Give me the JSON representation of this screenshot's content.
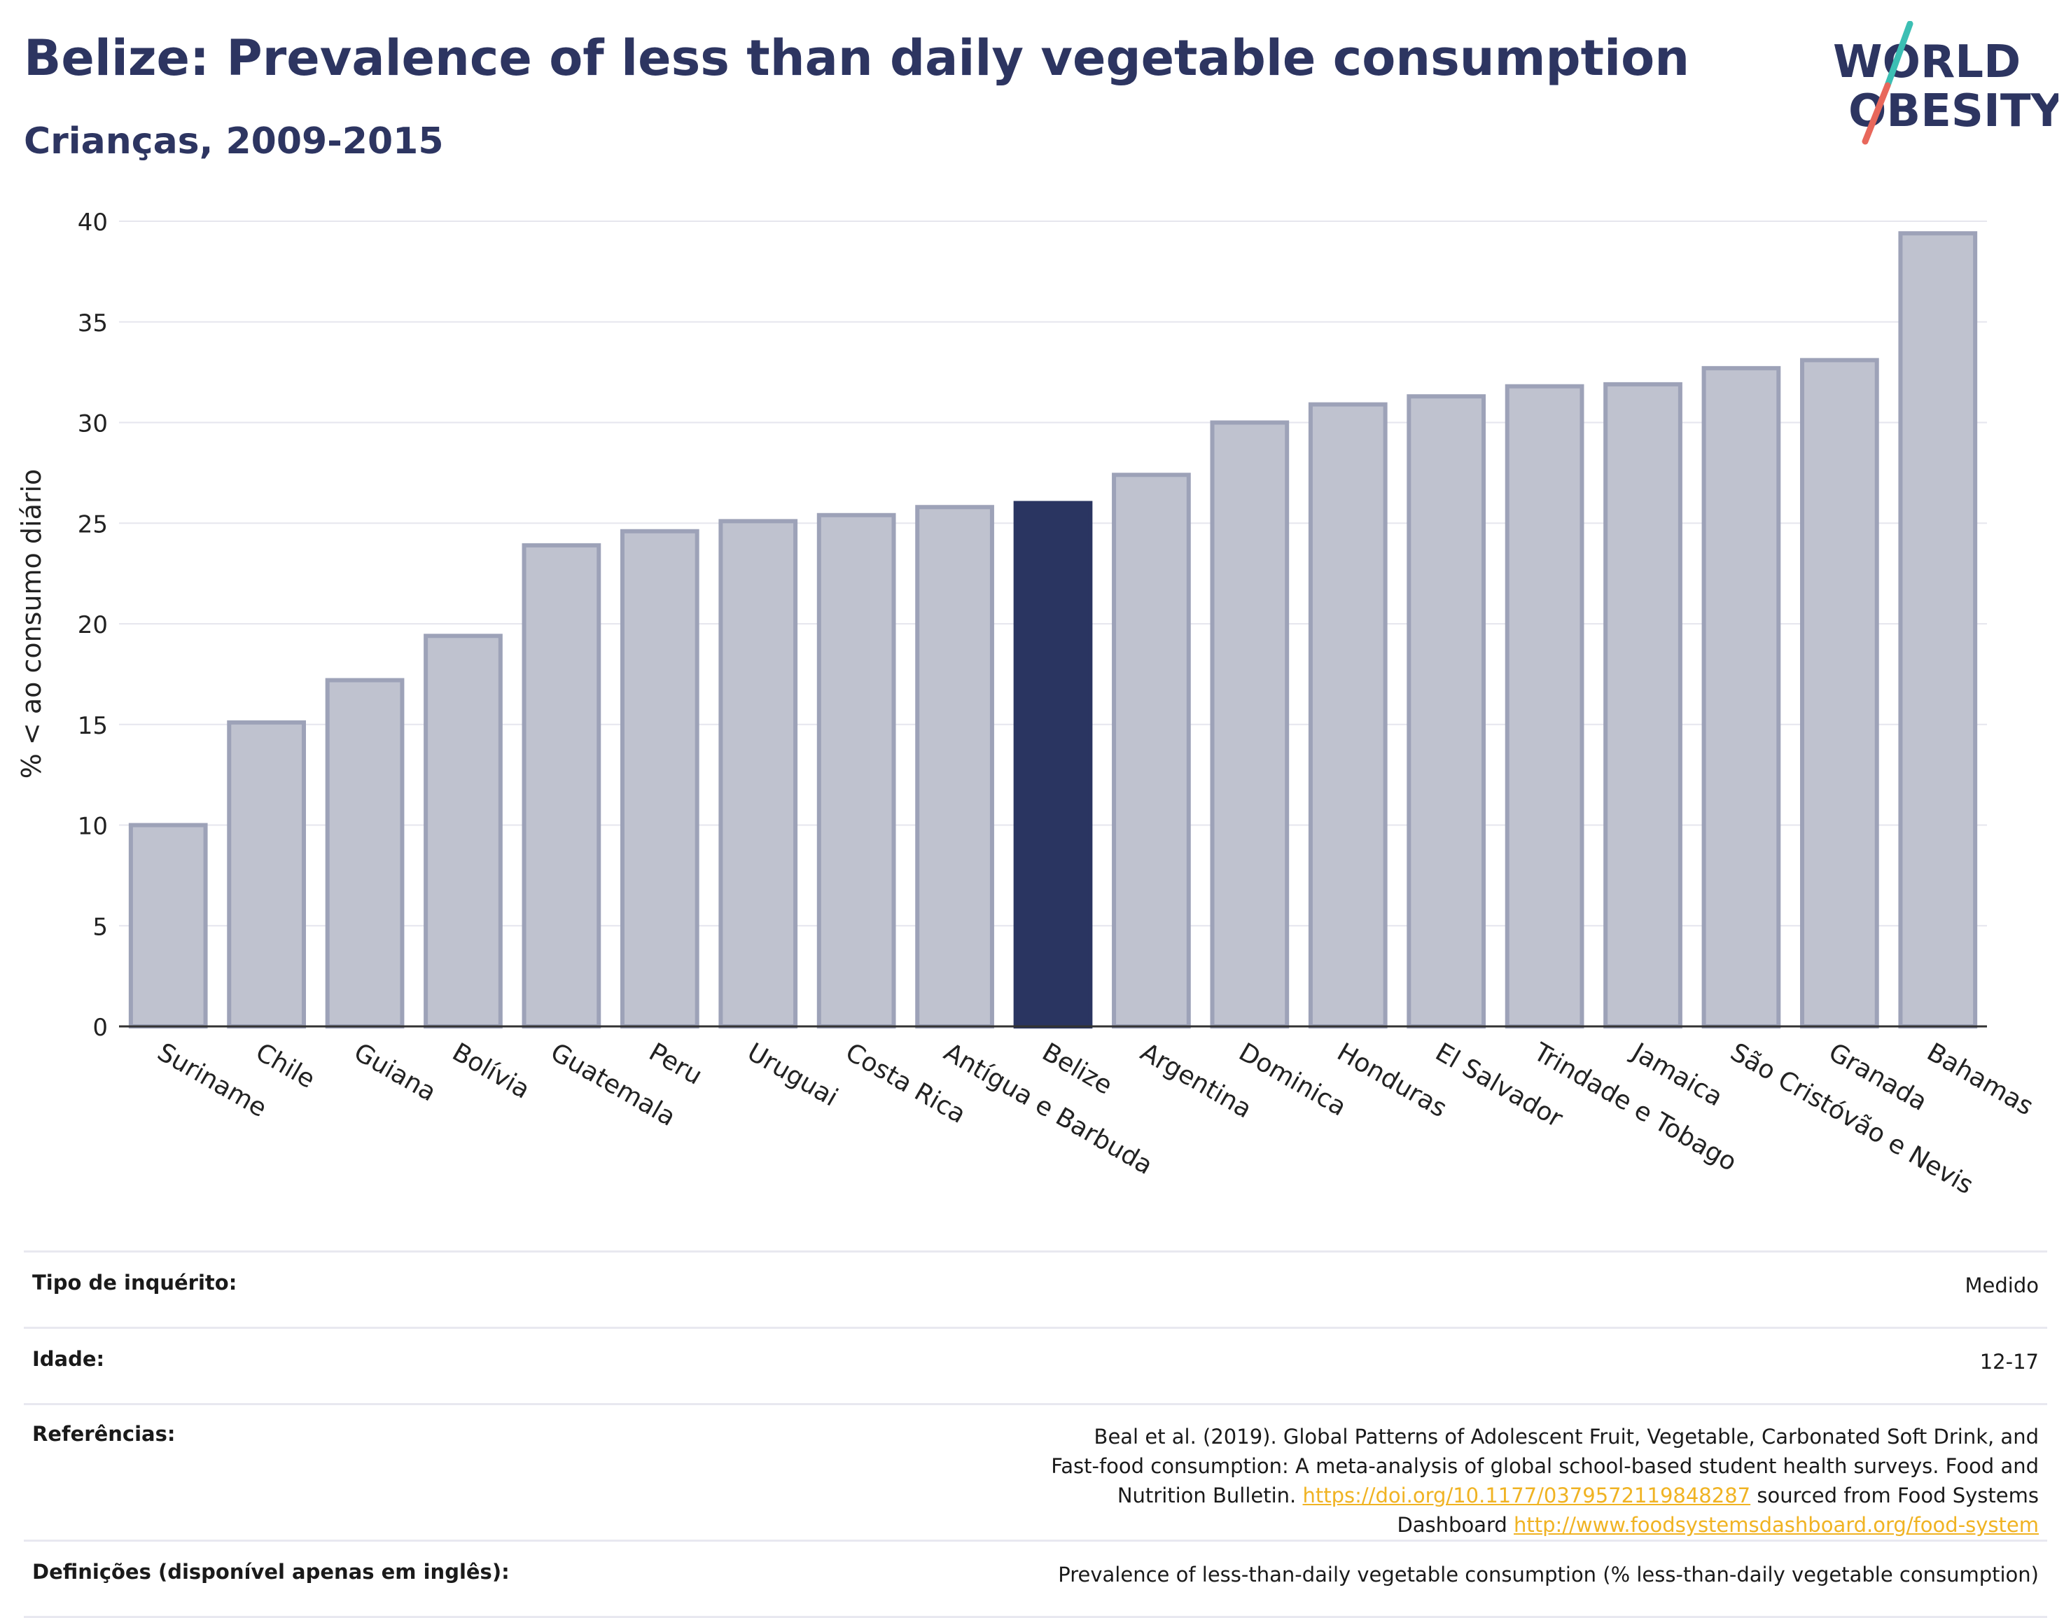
{
  "header": {
    "title": "Belize: Prevalence of less than daily vegetable consumption",
    "subtitle": "Crianças, 2009-2015"
  },
  "logo": {
    "line1": "WORLD",
    "line2": "OBESITY",
    "text_color": "#2d3561",
    "slash_colors": [
      "#3cbfb4",
      "#e8675b"
    ]
  },
  "chart_data": {
    "type": "bar",
    "title": "Belize: Prevalence of less than daily vegetable consumption",
    "subtitle": "Crianças, 2009-2015",
    "ylabel": "% < ao consumo diário",
    "xlabel": "",
    "ylim": [
      0,
      40
    ],
    "yticks": [
      0,
      5,
      10,
      15,
      20,
      25,
      30,
      35,
      40
    ],
    "grid": true,
    "categories": [
      "Suriname",
      "Chile",
      "Guiana",
      "Bolívia",
      "Guatemala",
      "Peru",
      "Uruguai",
      "Costa Rica",
      "Antígua e Barbuda",
      "Belize",
      "Argentina",
      "Dominica",
      "Honduras",
      "El Salvador",
      "Trindade e Tobago",
      "Jamaica",
      "São Cristóvão e Nevis",
      "Granada",
      "Bahamas"
    ],
    "values": [
      10.0,
      15.1,
      17.2,
      19.4,
      23.9,
      24.6,
      25.1,
      25.4,
      25.8,
      26.0,
      27.4,
      30.0,
      30.9,
      31.3,
      31.8,
      31.9,
      32.7,
      33.1,
      39.4
    ],
    "highlight": "Belize",
    "colors": {
      "bar": "#bfc2cf",
      "bar_border": "#9da2b8",
      "highlight": "#2a3561",
      "grid": "#e6e6ee",
      "axis": "#333333"
    }
  },
  "info": {
    "survey_type_label": "Tipo de inquérito:",
    "survey_type_value": "Medido",
    "age_label": "Idade:",
    "age_value": "12-17",
    "references_label": "Referências:",
    "references_text_1": "Beal et al. (2019). Global Patterns of Adolescent Fruit, Vegetable, Carbonated Soft Drink, and Fast-food consumption: A meta-analysis of global school-based student health surveys. Food and Nutrition Bulletin.",
    "references_link_1": "https://doi.org/10.1177/0379572119848287",
    "references_text_2": "sourced from Food Systems Dashboard",
    "references_link_2": "http://www.foodsystemsdashboard.org/food-system",
    "definitions_label": "Definições (disponível apenas em inglês):",
    "definitions_value": "Prevalence of less-than-daily vegetable consumption (% less-than-daily vegetable consumption)"
  }
}
